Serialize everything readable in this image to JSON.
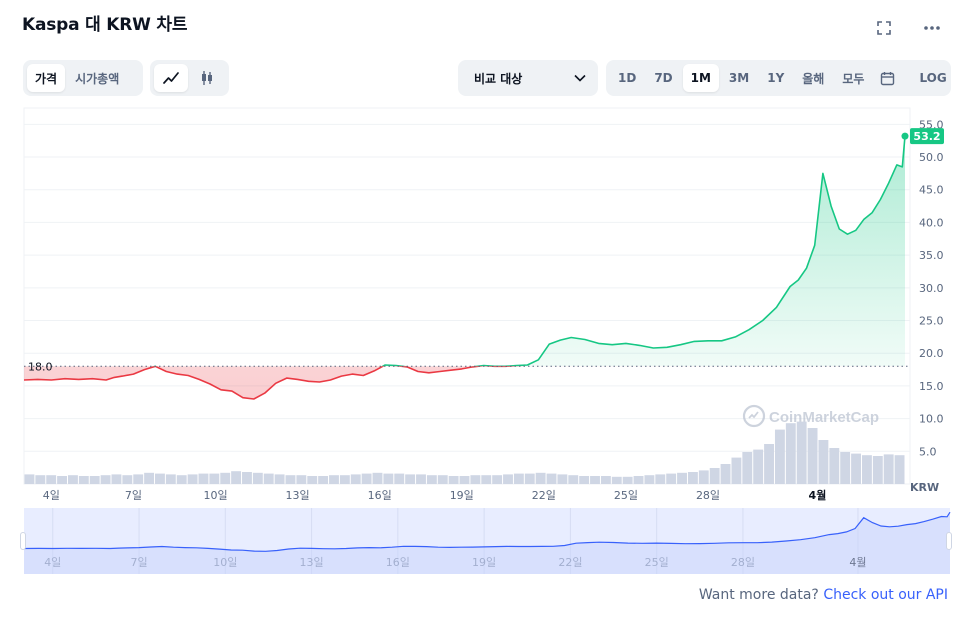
{
  "header": {
    "title": "Kaspa 대 KRW 차트",
    "fullscreen_icon": "expand-icon",
    "more_icon": "more-horizontal-icon"
  },
  "toolbar": {
    "metric_tabs": [
      {
        "label": "가격",
        "active": true
      },
      {
        "label": "시가총액",
        "active": false
      }
    ],
    "chart_type_icons": [
      {
        "icon": "line-chart-icon",
        "active": true
      },
      {
        "icon": "candlestick-icon",
        "active": false
      }
    ],
    "compare_label": "비교 대상",
    "ranges": [
      {
        "label": "1D",
        "active": false
      },
      {
        "label": "7D",
        "active": false
      },
      {
        "label": "1M",
        "active": true
      },
      {
        "label": "3M",
        "active": false
      },
      {
        "label": "1Y",
        "active": false
      },
      {
        "label": "올해",
        "active": false
      },
      {
        "label": "모두",
        "active": false
      }
    ],
    "calendar_icon": "calendar-icon",
    "log_label": "LOG"
  },
  "chart_data": {
    "type": "line",
    "currency_label": "KRW",
    "baseline_label": "18.0",
    "baseline_value": 18.0,
    "current_price_label": "53.2",
    "y_ticks": [
      "55.0",
      "50.0",
      "45.0",
      "40.0",
      "35.0",
      "30.0",
      "25.0",
      "20.0",
      "15.0",
      "10.0",
      "5.0"
    ],
    "ylim": [
      0,
      57.5
    ],
    "x_ticks": [
      "4일",
      "7일",
      "10일",
      "13일",
      "16일",
      "19일",
      "22일",
      "25일",
      "28일",
      "4월"
    ],
    "x_range_days": [
      1,
      33.2
    ],
    "x": [
      1.0,
      1.5,
      2.0,
      2.5,
      3.0,
      3.5,
      4.0,
      4.3,
      4.6,
      5.0,
      5.4,
      5.8,
      6.2,
      6.6,
      7.0,
      7.4,
      7.8,
      8.2,
      8.6,
      9.0,
      9.4,
      9.8,
      10.2,
      10.6,
      11.0,
      11.4,
      11.8,
      12.2,
      12.6,
      13.0,
      13.4,
      13.8,
      14.2,
      14.6,
      15.0,
      15.4,
      15.8,
      16.2,
      16.6,
      17.0,
      17.4,
      17.8,
      18.2,
      18.6,
      19.0,
      19.4,
      19.8,
      20.2,
      20.6,
      21.0,
      21.5,
      22.0,
      22.5,
      23.0,
      23.5,
      24.0,
      24.5,
      25.0,
      25.5,
      26.0,
      26.5,
      27.0,
      27.5,
      28.0,
      28.5,
      29.0,
      29.3,
      29.6,
      29.9,
      30.2,
      30.5,
      30.8,
      31.1,
      31.4,
      31.7,
      32.0,
      32.3,
      32.6,
      32.9,
      33.1,
      33.2
    ],
    "series": [
      {
        "values": [
          15.9,
          16.0,
          15.9,
          16.1,
          16.0,
          16.1,
          15.9,
          16.3,
          16.5,
          16.8,
          17.5,
          18.0,
          17.2,
          16.8,
          16.6,
          16.0,
          15.3,
          14.4,
          14.2,
          13.2,
          13.0,
          13.9,
          15.4,
          16.2,
          16.0,
          15.7,
          15.6,
          15.9,
          16.5,
          16.8,
          16.6,
          17.3,
          18.2,
          18.1,
          17.9,
          17.2,
          17.0,
          17.2,
          17.4,
          17.6,
          17.9,
          18.1,
          18.0,
          18.0,
          18.1,
          18.2,
          19.0,
          21.4,
          22.0,
          22.4,
          22.1,
          21.5,
          21.3,
          21.5,
          21.2,
          20.8,
          20.9,
          21.3,
          21.8,
          21.9,
          21.9,
          22.5,
          23.6,
          25.0,
          27.0,
          30.2,
          31.2,
          33.0,
          36.5,
          47.5,
          42.5,
          39.0,
          38.2,
          38.8,
          40.5,
          41.5,
          43.5,
          46.0,
          48.8,
          48.5,
          53.2
        ]
      }
    ],
    "volume": [
      1.2,
      1.1,
      1.1,
      1.0,
      1.1,
      1.0,
      1.0,
      1.1,
      1.2,
      1.1,
      1.2,
      1.4,
      1.3,
      1.2,
      1.1,
      1.2,
      1.3,
      1.3,
      1.4,
      1.6,
      1.5,
      1.4,
      1.3,
      1.2,
      1.1,
      1.1,
      1.0,
      1.0,
      1.1,
      1.1,
      1.2,
      1.3,
      1.4,
      1.3,
      1.3,
      1.2,
      1.2,
      1.1,
      1.1,
      1.0,
      1.0,
      1.1,
      1.1,
      1.1,
      1.2,
      1.3,
      1.3,
      1.4,
      1.3,
      1.2,
      1.1,
      1.0,
      1.0,
      1.0,
      0.9,
      0.9,
      1.0,
      1.1,
      1.2,
      1.3,
      1.4,
      1.5,
      1.7,
      2.0,
      2.5,
      3.3,
      4.0,
      4.3,
      5.0,
      6.8,
      7.6,
      7.8,
      7.0,
      5.5,
      4.5,
      4.0,
      3.8,
      3.6,
      3.5,
      3.7,
      3.6
    ],
    "volume_max": 8.0,
    "mini_x_ticks": [
      "4일",
      "7일",
      "10일",
      "13일",
      "16일",
      "19일",
      "22일",
      "25일",
      "28일",
      "4월"
    ],
    "watermark": "CoinMarketCap",
    "colors": {
      "up": "#16c784",
      "down": "#ea3943",
      "volume": "#cfd6e4",
      "navigator": "#3861fb",
      "navigator_fill": "#e8edff",
      "baseline": "#58667e"
    }
  },
  "footer": {
    "text": "Want more data?",
    "link": "Check out our API"
  }
}
